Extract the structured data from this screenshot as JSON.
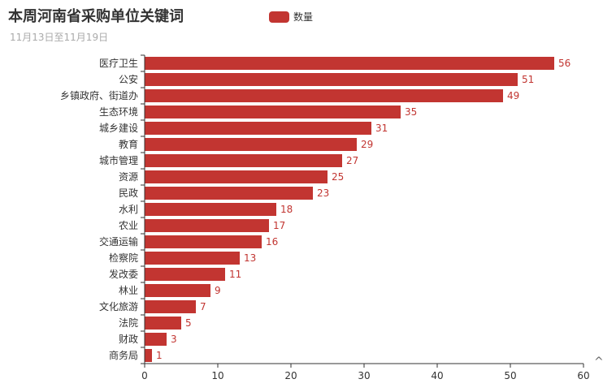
{
  "title": "本周河南省采购单位关键词",
  "subtitle": "11月13日至11月19日",
  "scroll_up_glyph": "^",
  "colors": {
    "bar": "#c23531",
    "axis": "#333333"
  },
  "chart_data": {
    "type": "bar",
    "orientation": "horizontal",
    "legend": {
      "position": "top",
      "entries": [
        "数量"
      ]
    },
    "categories": [
      "医疗卫生",
      "公安",
      "乡镇政府、街道办",
      "生态环境",
      "城乡建设",
      "教育",
      "城市管理",
      "资源",
      "民政",
      "水利",
      "农业",
      "交通运输",
      "检察院",
      "发改委",
      "林业",
      "文化旅游",
      "法院",
      "财政",
      "商务局"
    ],
    "series": [
      {
        "name": "数量",
        "values": [
          56,
          51,
          49,
          35,
          31,
          29,
          27,
          25,
          23,
          18,
          17,
          16,
          13,
          11,
          9,
          7,
          5,
          3,
          1
        ]
      }
    ],
    "xlim": [
      0,
      60
    ],
    "xticks": [
      0,
      10,
      20,
      30,
      40,
      50,
      60
    ],
    "grid": false
  }
}
